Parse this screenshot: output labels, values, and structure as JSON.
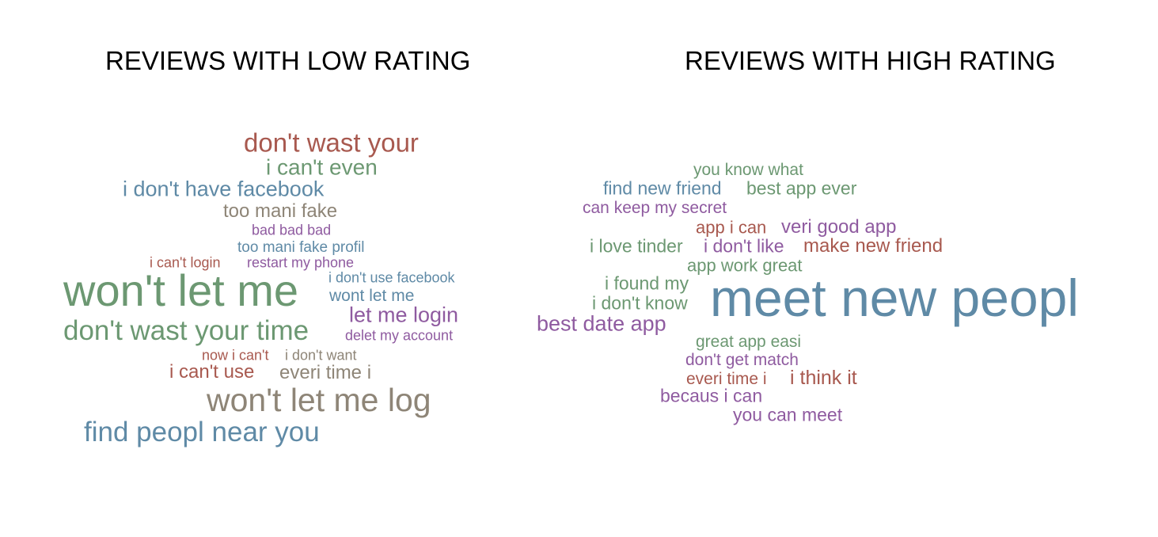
{
  "titles": {
    "low": "REVIEWS WITH LOW RATING",
    "high": "REVIEWS WITH HIGH RATING"
  },
  "colors": {
    "red": "#a8594f",
    "green": "#6c9872",
    "blue": "#5f8aa6",
    "gray": "#8e8577",
    "purple": "#8f5ba0"
  },
  "low_cloud": [
    "don't wast your",
    "i can't even",
    "i don't have facebook",
    "too mani fake",
    "bad bad bad",
    "too mani fake profil",
    "i can't login",
    "restart my phone",
    "i don't use facebook",
    "won't let me",
    "wont let me",
    "let me login",
    "don't wast your time",
    "delet my account",
    "now i can't",
    "i don't want",
    "i can't use",
    "everi time i",
    "won't let me log",
    "find peopl near you"
  ],
  "high_cloud": [
    "you know what",
    "find new friend",
    "best app ever",
    "can keep my secret",
    "app i can",
    "veri good app",
    "i love tinder",
    "i don't like",
    "make new friend",
    "app work great",
    "i found my",
    "i don't know",
    "meet new peopl",
    "best date app",
    "great app easi",
    "don't get match",
    "everi time i",
    "i think it",
    "becaus i can",
    "you can meet"
  ]
}
